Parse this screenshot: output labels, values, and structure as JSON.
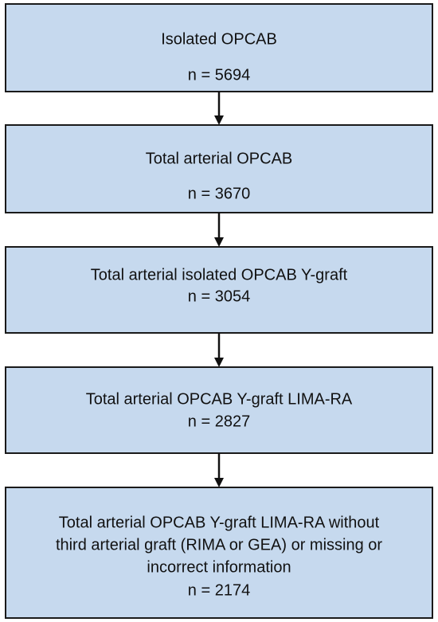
{
  "nodes": [
    {
      "lines": [
        "Isolated OPCAB"
      ],
      "n": "n = 5694"
    },
    {
      "lines": [
        "Total arterial OPCAB"
      ],
      "n": "n = 3670"
    },
    {
      "lines": [
        "Total arterial isolated OPCAB Y-graft"
      ],
      "n": "n = 3054"
    },
    {
      "lines": [
        "Total arterial OPCAB Y-graft LIMA-RA"
      ],
      "n": "n = 2827"
    },
    {
      "lines": [
        "Total arterial OPCAB Y-graft LIMA-RA without",
        "third arterial graft (RIMA or GEA) or missing or",
        "incorrect information"
      ],
      "n": "n = 2174"
    }
  ]
}
